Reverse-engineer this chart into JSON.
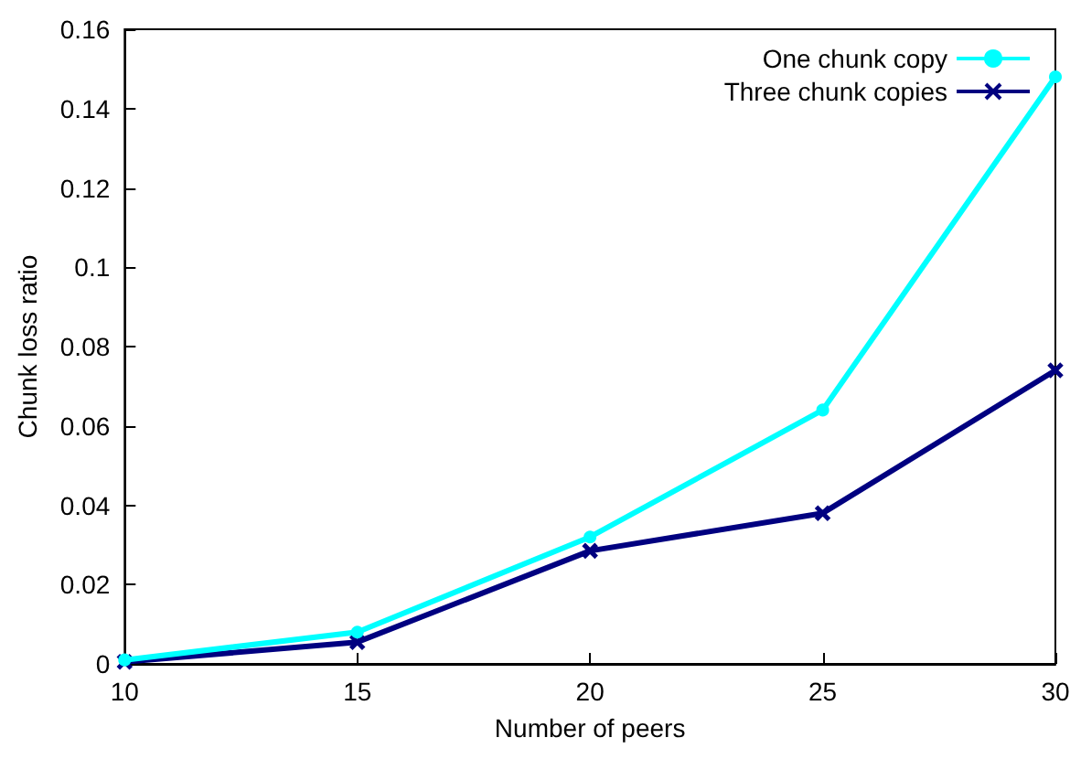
{
  "chart_data": {
    "type": "line",
    "xlabel": "Number of peers",
    "ylabel": "Chunk loss ratio",
    "x": [
      10,
      15,
      20,
      25,
      30
    ],
    "series": [
      {
        "name": "One chunk copy",
        "color": "#00ffff",
        "marker": "circle",
        "values": [
          0.001,
          0.008,
          0.032,
          0.064,
          0.148
        ]
      },
      {
        "name": "Three chunk copies",
        "color": "#000080",
        "marker": "cross",
        "values": [
          0.0005,
          0.0055,
          0.0285,
          0.038,
          0.074
        ]
      }
    ],
    "xlim": [
      10,
      30
    ],
    "xticks": [
      10,
      15,
      20,
      25,
      30
    ],
    "ylim": [
      0,
      0.16
    ],
    "yticks": [
      0,
      0.02,
      0.04,
      0.06,
      0.08,
      0.1,
      0.12,
      0.14,
      0.16
    ],
    "grid": false,
    "legend": "top right",
    "line_style": "solid"
  }
}
